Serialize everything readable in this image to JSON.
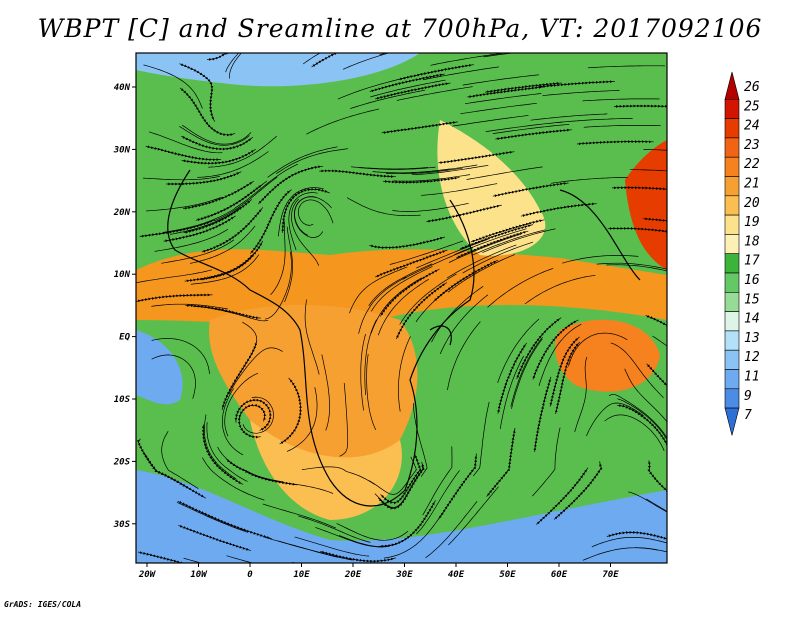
{
  "title": "WBPT [C] and Sreamline at 700hPa, VT: 2017092106",
  "credit": "GrADS: IGES/COLA",
  "axes": {
    "lon_labels": [
      "20W",
      "10W",
      "0",
      "10E",
      "20E",
      "30E",
      "40E",
      "50E",
      "60E",
      "70E"
    ],
    "lat_labels": [
      "40N",
      "30N",
      "20N",
      "10N",
      "EQ",
      "10S",
      "20S",
      "30S"
    ]
  },
  "colorbar": {
    "labels": [
      "26",
      "25",
      "24",
      "23",
      "22",
      "21",
      "20",
      "19",
      "18",
      "17",
      "16",
      "15",
      "14",
      "13",
      "12",
      "11",
      "9",
      "7"
    ],
    "colors": [
      "#b40000",
      "#d21400",
      "#e63c00",
      "#f06414",
      "#f5821e",
      "#f7a032",
      "#fbbe50",
      "#fde28c",
      "#fdf0b4",
      "#3cb43c",
      "#64c864",
      "#96dc96",
      "#dcf5e6",
      "#b4e1fa",
      "#8cc3f5",
      "#6eaaf0",
      "#4b8ce6",
      "#2d6ed7"
    ]
  },
  "map": {
    "background": "#5abe4e",
    "regions": [
      {
        "name": "sahel-warm",
        "color": "#f5961e"
      },
      {
        "name": "central-warm",
        "color": "#f7a032"
      },
      {
        "name": "southern-warm",
        "color": "#fbbe50"
      },
      {
        "name": "arabia-yellow",
        "color": "#fde28c"
      },
      {
        "name": "indian-ocean-warm",
        "color": "#f5821e"
      },
      {
        "name": "india-hot",
        "color": "#e63c00"
      },
      {
        "name": "south-ocean-cool",
        "color": "#6eaaf0"
      },
      {
        "name": "north-cool",
        "color": "#8cc3f5"
      }
    ]
  }
}
